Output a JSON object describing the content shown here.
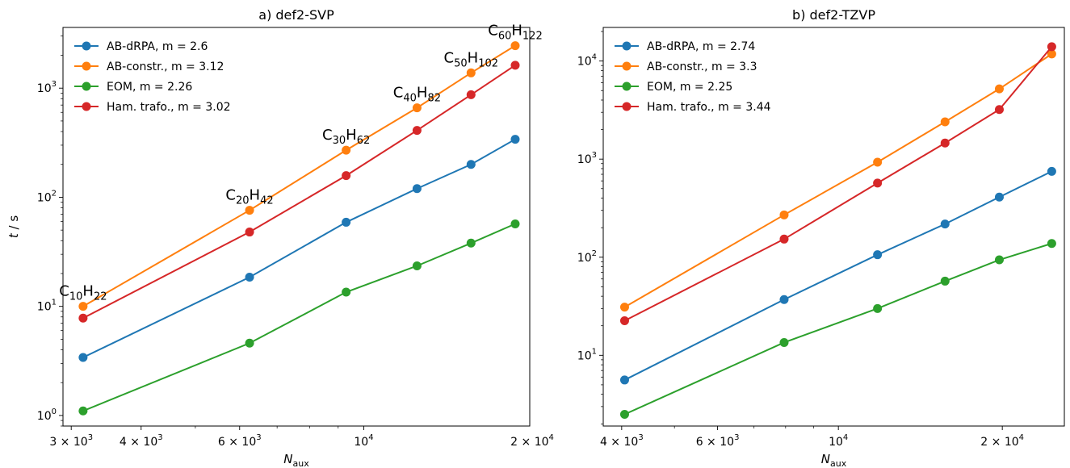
{
  "chart_data": [
    {
      "type": "line",
      "title": "a) def2-SVP",
      "xlabel_main": "N",
      "xlabel_sub": "aux",
      "ylabel_main": "t",
      "ylabel_rest": " / s",
      "xscale": "log",
      "yscale": "log",
      "xlim": [
        2900,
        19800
      ],
      "ylim": [
        0.8,
        3600
      ],
      "grid": false,
      "legend_position": "top-left",
      "x": [
        3150,
        6250,
        9300,
        12450,
        15550,
        18650
      ],
      "x_ticks": [
        {
          "value": 3000,
          "mant": "3 × 10",
          "exp": "3"
        },
        {
          "value": 4000,
          "mant": "4 × 10",
          "exp": "3"
        },
        {
          "value": 6000,
          "mant": "6 × 10",
          "exp": "3"
        },
        {
          "value": 10000,
          "mant": "10",
          "exp": "4"
        },
        {
          "value": 20000,
          "mant": "2 × 10",
          "exp": "4"
        }
      ],
      "y_ticks": [
        {
          "value": 1,
          "exp": "0"
        },
        {
          "value": 10,
          "exp": "1"
        },
        {
          "value": 100,
          "exp": "2"
        },
        {
          "value": 1000,
          "exp": "3"
        }
      ],
      "series": [
        {
          "name": "AB-dRPA, m = 2.6",
          "color": "#1f77b4",
          "values": [
            3.4,
            18.5,
            59,
            120,
            200,
            340
          ]
        },
        {
          "name": "AB-constr., m = 3.12",
          "color": "#ff7f0e",
          "values": [
            10,
            76,
            270,
            660,
            1380,
            2450
          ]
        },
        {
          "name": "EOM, m = 2.26",
          "color": "#2ca02c",
          "values": [
            1.1,
            4.6,
            13.5,
            23.5,
            38,
            57
          ]
        },
        {
          "name": "Ham. trafo., m = 3.02",
          "color": "#d62728",
          "values": [
            7.8,
            48,
            158,
            410,
            870,
            1620
          ]
        }
      ],
      "annotations": [
        {
          "x": 3150,
          "y": 10,
          "parts": [
            [
              "C",
              ""
            ],
            [
              "10",
              "sub"
            ],
            [
              "H",
              ""
            ],
            [
              "22",
              "sub"
            ]
          ]
        },
        {
          "x": 6250,
          "y": 76,
          "parts": [
            [
              "C",
              ""
            ],
            [
              "20",
              "sub"
            ],
            [
              "H",
              ""
            ],
            [
              "42",
              "sub"
            ]
          ]
        },
        {
          "x": 9300,
          "y": 270,
          "parts": [
            [
              "C",
              ""
            ],
            [
              "30",
              "sub"
            ],
            [
              "H",
              ""
            ],
            [
              "62",
              "sub"
            ]
          ]
        },
        {
          "x": 12450,
          "y": 660,
          "parts": [
            [
              "C",
              ""
            ],
            [
              "40",
              "sub"
            ],
            [
              "H",
              ""
            ],
            [
              "82",
              "sub"
            ]
          ]
        },
        {
          "x": 15550,
          "y": 1380,
          "parts": [
            [
              "C",
              ""
            ],
            [
              "50",
              "sub"
            ],
            [
              "H",
              ""
            ],
            [
              "102",
              "sub"
            ]
          ]
        },
        {
          "x": 18650,
          "y": 2450,
          "parts": [
            [
              "C",
              ""
            ],
            [
              "60",
              "sub"
            ],
            [
              "H",
              ""
            ],
            [
              "122",
              "sub"
            ]
          ]
        }
      ]
    },
    {
      "type": "line",
      "title": "b) def2-TZVP",
      "xlabel_main": "N",
      "xlabel_sub": "aux",
      "ylabel_main": "",
      "ylabel_rest": "",
      "xscale": "log",
      "yscale": "log",
      "xlim": [
        3700,
        26000
      ],
      "ylim": [
        1.9,
        22000
      ],
      "grid": false,
      "legend_position": "top-left",
      "x": [
        4050,
        7950,
        11800,
        15700,
        19750,
        24650
      ],
      "x_ticks": [
        {
          "value": 4000,
          "mant": "4 × 10",
          "exp": "3"
        },
        {
          "value": 6000,
          "mant": "6 × 10",
          "exp": "3"
        },
        {
          "value": 10000,
          "mant": "10",
          "exp": "4"
        },
        {
          "value": 20000,
          "mant": "2 × 10",
          "exp": "4"
        }
      ],
      "y_ticks": [
        {
          "value": 10,
          "exp": "1"
        },
        {
          "value": 100,
          "exp": "2"
        },
        {
          "value": 1000,
          "exp": "3"
        },
        {
          "value": 10000,
          "exp": "4"
        }
      ],
      "series": [
        {
          "name": "AB-dRPA, m = 2.74",
          "color": "#1f77b4",
          "values": [
            5.6,
            37,
            106,
            218,
            410,
            750
          ]
        },
        {
          "name": "AB-constr., m = 3.3",
          "color": "#ff7f0e",
          "values": [
            31,
            270,
            930,
            2400,
            5200,
            11800
          ]
        },
        {
          "name": "EOM, m = 2.25",
          "color": "#2ca02c",
          "values": [
            2.5,
            13.5,
            30,
            57,
            94,
            138
          ]
        },
        {
          "name": "Ham. trafo., m = 3.44",
          "color": "#d62728",
          "values": [
            22.5,
            153,
            570,
            1460,
            3200,
            14000
          ]
        }
      ],
      "annotations": []
    }
  ]
}
